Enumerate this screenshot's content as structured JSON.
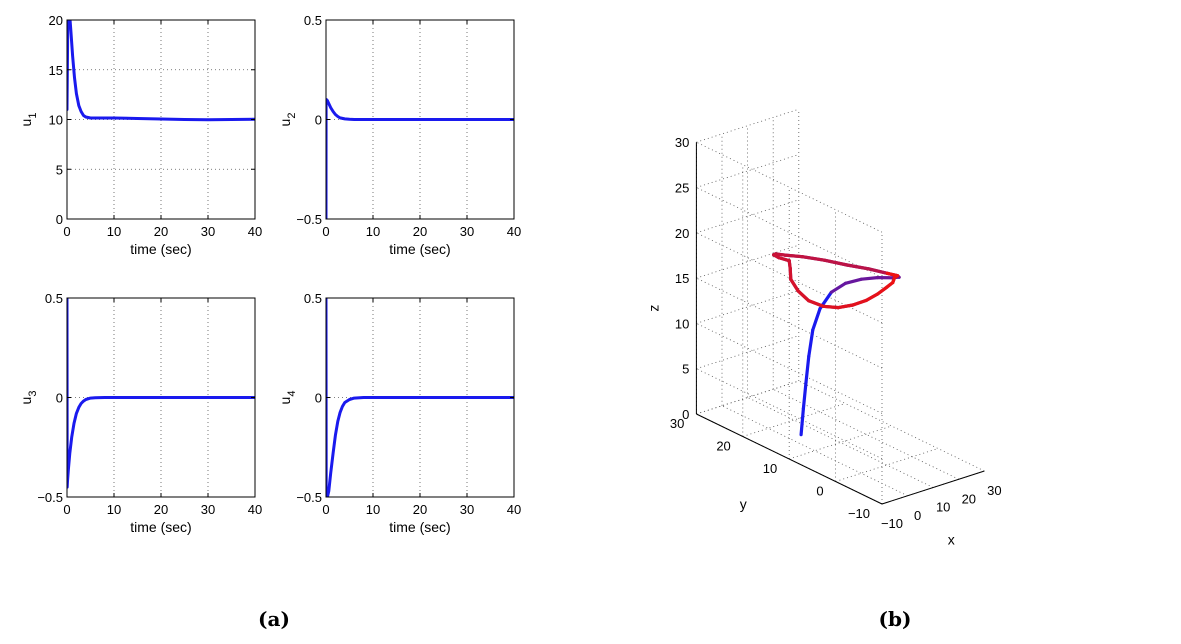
{
  "chart_data": [
    {
      "type": "line",
      "ylabel": "u",
      "ylabel_sub": "1",
      "xlabel": "time (sec)",
      "xlim": [
        0,
        40
      ],
      "ylim": [
        0,
        20
      ],
      "xticks": [
        "0",
        "10",
        "20",
        "30",
        "40"
      ],
      "yticks": [
        "0",
        "5",
        "10",
        "15",
        "20"
      ],
      "grid": true,
      "series": [
        {
          "color": "#1a1aee",
          "x": [
            0,
            0.15,
            0.3,
            0.5,
            0.8,
            1.2,
            1.6,
            2,
            2.5,
            3,
            3.5,
            4,
            5,
            6,
            8,
            10,
            15,
            20,
            25,
            30,
            35,
            40
          ],
          "y": [
            11,
            19,
            24,
            21,
            19,
            16.4,
            14.2,
            12.6,
            11.4,
            10.8,
            10.4,
            10.25,
            10.15,
            10.15,
            10.15,
            10.15,
            10.1,
            10.05,
            10,
            9.98,
            10,
            10.02
          ]
        }
      ]
    },
    {
      "type": "line",
      "ylabel": "u",
      "ylabel_sub": "2",
      "xlabel": "time (sec)",
      "xlim": [
        0,
        40
      ],
      "ylim": [
        -0.5,
        0.5
      ],
      "xticks": [
        "0",
        "10",
        "20",
        "30",
        "40"
      ],
      "yticks": [
        "−0.5",
        "0",
        "0.5"
      ],
      "grid": true,
      "series": [
        {
          "color": "#1a1aee",
          "x": [
            0,
            0.02,
            0.1,
            0.3,
            0.6,
            1,
            1.5,
            2,
            2.5,
            3,
            4,
            5,
            6,
            10,
            20,
            30,
            40
          ],
          "y": [
            -0.5,
            0.08,
            0.1,
            0.095,
            0.08,
            0.06,
            0.04,
            0.025,
            0.015,
            0.008,
            0.003,
            0.001,
            0,
            0,
            0,
            0,
            0
          ]
        }
      ]
    },
    {
      "type": "line",
      "ylabel": "u",
      "ylabel_sub": "3",
      "xlabel": "time (sec)",
      "xlim": [
        0,
        40
      ],
      "ylim": [
        -0.5,
        0.5
      ],
      "xticks": [
        "0",
        "10",
        "20",
        "30",
        "40"
      ],
      "yticks": [
        "−0.5",
        "0",
        "0.5"
      ],
      "grid": true,
      "series": [
        {
          "color": "#1a1aee",
          "x": [
            0,
            0.05,
            0.1,
            0.3,
            0.6,
            1,
            1.5,
            2,
            2.5,
            3,
            3.5,
            4,
            5,
            6,
            8,
            10,
            20,
            30,
            40
          ],
          "y": [
            0.5,
            -0.45,
            -0.42,
            -0.36,
            -0.28,
            -0.2,
            -0.13,
            -0.08,
            -0.05,
            -0.03,
            -0.018,
            -0.01,
            -0.003,
            -0.001,
            0,
            0,
            0,
            0,
            0
          ]
        }
      ]
    },
    {
      "type": "line",
      "ylabel": "u",
      "ylabel_sub": "4",
      "xlabel": "time (sec)",
      "xlim": [
        0,
        40
      ],
      "ylim": [
        -0.5,
        0.5
      ],
      "xticks": [
        "0",
        "10",
        "20",
        "30",
        "40"
      ],
      "yticks": [
        "−0.5",
        "0",
        "0.5"
      ],
      "grid": true,
      "series": [
        {
          "color": "#1a1aee",
          "x": [
            0,
            0.05,
            0.3,
            0.6,
            1,
            1.5,
            2,
            2.5,
            3,
            3.5,
            4,
            5,
            6,
            8,
            10,
            20,
            30,
            40
          ],
          "y": [
            0.5,
            -0.5,
            -0.5,
            -0.47,
            -0.38,
            -0.28,
            -0.19,
            -0.12,
            -0.075,
            -0.045,
            -0.025,
            -0.01,
            -0.003,
            0,
            0,
            0,
            0,
            0
          ]
        }
      ]
    },
    {
      "type": "line3d",
      "xlabel": "x",
      "ylabel": "y",
      "zlabel": "z",
      "xlim": [
        -10,
        30
      ],
      "ylim": [
        -10,
        30
      ],
      "zlim": [
        0,
        30
      ],
      "xticks": [
        "−10",
        "0",
        "10",
        "20",
        "30"
      ],
      "yticks": [
        "−10",
        "0",
        "10",
        "20",
        "30"
      ],
      "zticks": [
        "0",
        "5",
        "10",
        "15",
        "20",
        "25",
        "30"
      ],
      "grid": true,
      "colors": {
        "start": "#1a1aee",
        "end": "#ee1111"
      },
      "trajectory_xy_z_note": "",
      "x": [
        4.6,
        4.6,
        4.7,
        4.9,
        5.4,
        6.4,
        8.3,
        11.1,
        14.6,
        18.7,
        22.9,
        26.6,
        28.7,
        29.2,
        27.5,
        23.8,
        18.6,
        12.5,
        7,
        3.2,
        1,
        0.4,
        1.8,
        0.9,
        -1.2,
        -2,
        -1.6,
        0.4,
        3.8,
        8,
        12.5,
        16.9,
        21,
        24.3,
        26.6,
        28.7,
        29.2,
        27.5,
        23.8,
        18.6,
        12.5,
        7,
        3.2,
        1,
        0.4,
        1.8,
        0.9,
        -1.2,
        -2,
        -1.6,
        0.4,
        3.8,
        8,
        12.5,
        16.9,
        21,
        24.3,
        26.6,
        28.7,
        29.2
      ],
      "y": [
        15.5,
        15,
        14.5,
        14,
        13.4,
        12.4,
        11,
        9.5,
        8,
        6.8,
        6,
        6.5,
        8,
        10.5,
        13.5,
        16.2,
        18.2,
        19.6,
        20.3,
        20.2,
        19.4,
        18,
        16.5,
        15.8,
        14.5,
        12.5,
        10.4,
        8.4,
        7,
        6.2,
        5.8,
        5.8,
        6.1,
        6.6,
        7.5,
        8,
        10.5,
        13.5,
        16.2,
        18.2,
        19.6,
        20.3,
        20.2,
        19.4,
        18,
        16.5,
        15.8,
        14.5,
        12.5,
        10.4,
        8.4,
        7,
        6.2,
        5.8,
        5.8,
        6.1,
        6.6,
        7.5,
        8,
        10.5
      ],
      "z": [
        0,
        3,
        6,
        9,
        12,
        14.5,
        16.5,
        17.6,
        18.1,
        18.2,
        18,
        17.6,
        17.2,
        16.8,
        16.7,
        16.8,
        17.3,
        17.9,
        18.4,
        18.9,
        19.2,
        19.3,
        19.2,
        18.6,
        17.9,
        17.2,
        16.6,
        16.3,
        16.2,
        16.3,
        16.5,
        16.8,
        17.1,
        17.2,
        17.3,
        17.2,
        16.8,
        16.7,
        16.8,
        17.3,
        17.9,
        18.4,
        18.9,
        19.2,
        19.3,
        19.2,
        18.6,
        17.9,
        17.2,
        16.6,
        16.3,
        16.2,
        16.3,
        16.5,
        16.8,
        17.1,
        17.2,
        17.3,
        17.2,
        16.8
      ]
    }
  ],
  "captions": {
    "left": "(a)",
    "right": "(b)"
  }
}
